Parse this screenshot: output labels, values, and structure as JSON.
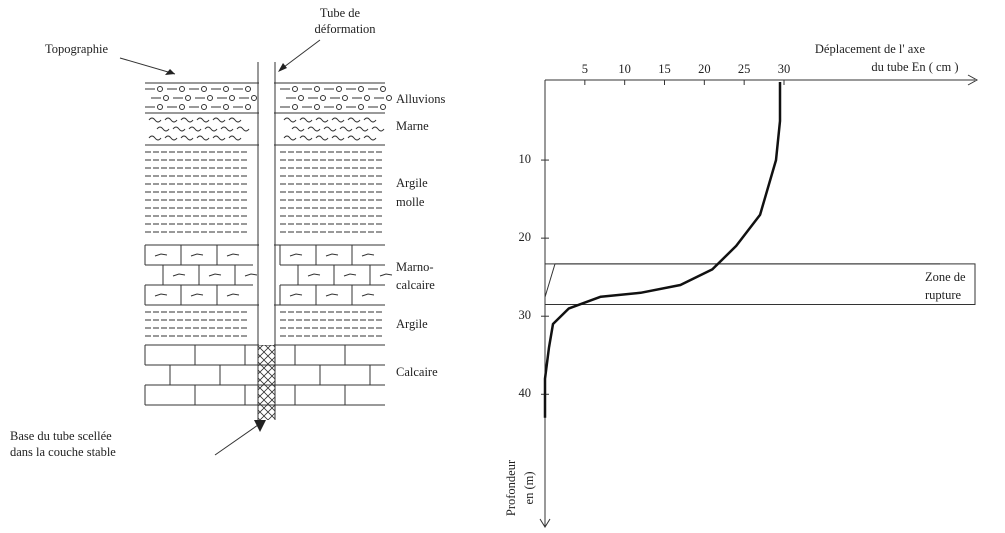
{
  "labels": {
    "topographie": "Topographie",
    "tube": [
      "Tube de",
      "déformation"
    ],
    "base": [
      "Base du tube scellée",
      "dans la couche stable"
    ],
    "layers": [
      "Alluvions",
      "Marne",
      [
        "Argile",
        "molle"
      ],
      [
        "Marno-",
        "calcaire"
      ],
      "Argile",
      "Calcaire"
    ]
  },
  "chart_data": {
    "type": "line",
    "x_label": [
      "Déplacement de l' axe",
      "du tube En ( cm )"
    ],
    "y_label": [
      "Profondeur",
      "en (m)"
    ],
    "annotation": [
      "Zone de",
      "rupture"
    ],
    "zone": [
      23.3,
      28.5
    ],
    "x": [
      29.5,
      29.5,
      29,
      27,
      24,
      21,
      17,
      12,
      7,
      3,
      1,
      0.5,
      0,
      0
    ],
    "values": [
      0,
      5,
      10,
      17,
      21,
      24,
      26,
      27,
      27.5,
      29,
      31,
      34,
      38,
      43
    ],
    "xlim": [
      0,
      30
    ],
    "xticks": [
      5,
      10,
      15,
      20,
      25,
      30
    ],
    "ylim": [
      0,
      57
    ],
    "yticks": [
      10,
      20,
      30,
      40
    ]
  }
}
